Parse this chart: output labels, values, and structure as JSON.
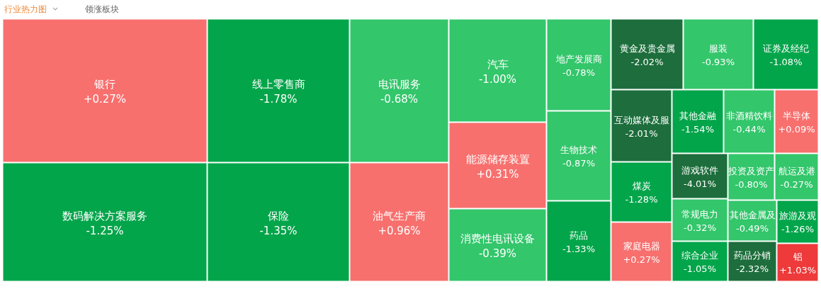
{
  "chart_data": {
    "type": "other",
    "title": "行业热力图",
    "annotations": [
      "领涨板块"
    ],
    "categories": [
      "银行",
      "数码解决方案服务",
      "线上零售商",
      "保险",
      "电讯服务",
      "油气生产商",
      "汽车",
      "能源储存装置",
      "消费性电讯设备",
      "地产发展商",
      "生物技术",
      "药品",
      "黄金及贵金属",
      "服装",
      "证券及经纪",
      "互动媒体及服",
      "其他金融",
      "非酒精饮料",
      "半导体",
      "煤炭",
      "家庭电器",
      "游戏软件",
      "投资及资产",
      "航运及港",
      "常规电力",
      "其他金属及",
      "旅游及观",
      "综合企业",
      "药品分销",
      "铝"
    ],
    "values": [
      0.27,
      -1.25,
      -1.78,
      -1.35,
      -0.68,
      0.96,
      -1.0,
      0.31,
      -0.39,
      -0.78,
      -0.87,
      -1.33,
      -2.02,
      -0.93,
      -1.08,
      -2.01,
      -1.54,
      -0.44,
      0.09,
      -1.28,
      0.27,
      -4.01,
      -0.8,
      -0.27,
      -0.32,
      -0.49,
      -1.26,
      -1.05,
      -2.32,
      1.03
    ],
    "value_labels": [
      "+0.27%",
      "-1.25%",
      "-1.78%",
      "-1.35%",
      "-0.68%",
      "+0.96%",
      "-1.00%",
      "+0.31%",
      "-0.39%",
      "-0.78%",
      "-0.87%",
      "-1.33%",
      "-2.02%",
      "-0.93%",
      "-1.08%",
      "-2.01%",
      "-1.54%",
      "-0.44%",
      "+0.09%",
      "-1.28%",
      "+0.27%",
      "-4.01%",
      "-0.80%",
      "-0.27%",
      "-0.32%",
      "-0.49%",
      "-1.26%",
      "-1.05%",
      "-2.32%",
      "+1.03%"
    ]
  }
}
